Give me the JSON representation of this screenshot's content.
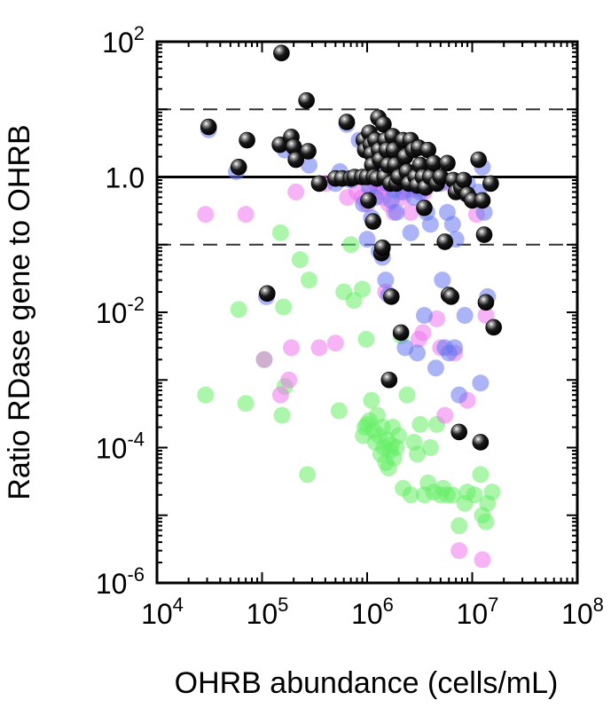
{
  "chart_data": {
    "type": "scatter",
    "xlabel": "OHRB abundance (cells/mL)",
    "ylabel": "Ratio RDase gene to OHRB",
    "x_scale": "log",
    "y_scale": "log",
    "xlim": [
      10000,
      100000000
    ],
    "ylim": [
      1e-06,
      100
    ],
    "x_ticks": [
      {
        "base": "10",
        "exp": "4",
        "value": 10000
      },
      {
        "base": "10",
        "exp": "5",
        "value": 100000
      },
      {
        "base": "10",
        "exp": "6",
        "value": 1000000
      },
      {
        "base": "10",
        "exp": "7",
        "value": 10000000
      },
      {
        "base": "10",
        "exp": "8",
        "value": 100000000
      }
    ],
    "y_ticks": [
      {
        "base": "10",
        "exp": "-6",
        "value": 1e-06
      },
      {
        "base": "10",
        "exp": "-4",
        "value": 0.0001
      },
      {
        "base": "10",
        "exp": "-2",
        "value": 0.01
      },
      {
        "base": "",
        "exp": "",
        "label": "1.0",
        "value": 1
      },
      {
        "base": "10",
        "exp": "2",
        "value": 100
      }
    ],
    "reference_lines": [
      {
        "y": 10,
        "style": "dashed"
      },
      {
        "y": 1,
        "style": "solid"
      },
      {
        "y": 0.1,
        "style": "dashed"
      }
    ],
    "grid": false,
    "legend": "none",
    "series": [
      {
        "color": "#66ee66",
        "marker": "translucent circle",
        "points": [
          [
            29000,
            0.0006
          ],
          [
            60000,
            0.011
          ],
          [
            70000,
            0.00045
          ],
          [
            105000,
            0.002
          ],
          [
            150000,
            0.15
          ],
          [
            155000,
            0.0003
          ],
          [
            160000,
            0.012
          ],
          [
            165000,
            0.0008
          ],
          [
            230000,
            0.06
          ],
          [
            270000,
            4e-05
          ],
          [
            280000,
            0.03
          ],
          [
            540000,
            0.00035
          ],
          [
            600000,
            0.02
          ],
          [
            700000,
            0.1
          ],
          [
            750000,
            0.015
          ],
          [
            900000,
            0.022
          ],
          [
            920000,
            0.00015
          ],
          [
            950000,
            0.0002
          ],
          [
            980000,
            0.004
          ],
          [
            1000000,
            0.00022
          ],
          [
            1050000,
            0.00025
          ],
          [
            1100000,
            0.0005
          ],
          [
            1150000,
            0.00018
          ],
          [
            1200000,
            0.00012
          ],
          [
            1250000,
            0.0003
          ],
          [
            1300000,
            0.00015
          ],
          [
            1350000,
            8e-05
          ],
          [
            1400000,
            0.0002
          ],
          [
            1450000,
            0.0001
          ],
          [
            1500000,
            6e-05
          ],
          [
            1550000,
            0.00013
          ],
          [
            1600000,
            5e-05
          ],
          [
            1650000,
            9e-05
          ],
          [
            1700000,
            0.00011
          ],
          [
            1750000,
            0.0002
          ],
          [
            1800000,
            7e-05
          ],
          [
            1900000,
            0.0001
          ],
          [
            2000000,
            0.00015
          ],
          [
            2100000,
            0.0045
          ],
          [
            2200000,
            2.5e-05
          ],
          [
            2400000,
            0.0006
          ],
          [
            2600000,
            2e-05
          ],
          [
            2800000,
            0.00012
          ],
          [
            3000000,
            8e-05
          ],
          [
            3200000,
            0.00022
          ],
          [
            3500000,
            2e-05
          ],
          [
            3800000,
            3e-05
          ],
          [
            4000000,
            0.0001
          ],
          [
            4300000,
            2.2e-05
          ],
          [
            4600000,
            0.00022
          ],
          [
            5000000,
            2e-05
          ],
          [
            5300000,
            2.5e-05
          ],
          [
            5800000,
            2e-05
          ],
          [
            6500000,
            2e-05
          ],
          [
            7500000,
            7e-06
          ],
          [
            8500000,
            1.5e-05
          ],
          [
            9000000,
            2.2e-05
          ],
          [
            10500000,
            2e-05
          ],
          [
            12000000,
            4e-05
          ],
          [
            12500000,
            1e-05
          ],
          [
            13500000,
            8e-06
          ],
          [
            14000000,
            1.5e-05
          ],
          [
            15500000,
            2.2e-05
          ]
        ]
      },
      {
        "color": "#ee77ee",
        "marker": "translucent circle",
        "points": [
          [
            29000,
            0.28
          ],
          [
            70000,
            0.28
          ],
          [
            105000,
            0.002
          ],
          [
            150000,
            0.0006
          ],
          [
            180000,
            0.001
          ],
          [
            190000,
            0.003
          ],
          [
            210000,
            0.6
          ],
          [
            350000,
            0.003
          ],
          [
            400000,
            0.8
          ],
          [
            500000,
            0.0035
          ],
          [
            650000,
            0.5
          ],
          [
            800000,
            0.6
          ],
          [
            900000,
            0.5
          ],
          [
            1000000,
            0.4
          ],
          [
            1100000,
            0.7
          ],
          [
            1200000,
            0.8
          ],
          [
            1250000,
            0.6
          ],
          [
            1300000,
            0.9
          ],
          [
            1400000,
            0.5
          ],
          [
            1450000,
            0.7
          ],
          [
            1500000,
            0.02
          ],
          [
            1600000,
            0.4
          ],
          [
            1700000,
            0.85
          ],
          [
            1800000,
            0.3
          ],
          [
            2000000,
            0.6
          ],
          [
            2100000,
            0.8
          ],
          [
            2200000,
            0.5
          ],
          [
            2400000,
            0.65
          ],
          [
            2600000,
            0.3
          ],
          [
            2700000,
            0.65
          ],
          [
            3000000,
            0.7
          ],
          [
            3100000,
            0.004
          ],
          [
            3400000,
            0.005
          ],
          [
            3500000,
            0.6
          ],
          [
            3900000,
            0.8
          ],
          [
            4600000,
            0.008
          ],
          [
            5000000,
            0.003
          ],
          [
            5500000,
            0.0003
          ],
          [
            6200000,
            0.8
          ],
          [
            6800000,
            0.0025
          ],
          [
            7000000,
            0.65
          ],
          [
            7500000,
            3e-06
          ],
          [
            9000000,
            0.0005
          ],
          [
            11000000,
            0.28
          ],
          [
            12500000,
            2.2e-06
          ],
          [
            13500000,
            0.009
          ]
        ]
      },
      {
        "color": "#6677ee",
        "marker": "translucent circle",
        "points": [
          [
            31000,
            5
          ],
          [
            57000,
            1.2
          ],
          [
            110000,
            0.017
          ],
          [
            165000,
            2.5
          ],
          [
            210000,
            2
          ],
          [
            280000,
            1.5
          ],
          [
            500000,
            0.8
          ],
          [
            550000,
            1.2
          ],
          [
            640000,
            6
          ],
          [
            700000,
            0.9
          ],
          [
            840000,
            3.5
          ],
          [
            920000,
            0.4
          ],
          [
            1000000,
            0.12
          ],
          [
            1050000,
            0.7
          ],
          [
            1100000,
            0.25
          ],
          [
            1150000,
            1.5
          ],
          [
            1200000,
            0.5
          ],
          [
            1300000,
            0.08
          ],
          [
            1400000,
            0.065
          ],
          [
            1500000,
            0.03
          ],
          [
            1550000,
            0.8
          ],
          [
            1600000,
            0.018
          ],
          [
            1700000,
            0.45
          ],
          [
            1800000,
            0.65
          ],
          [
            1900000,
            0.3
          ],
          [
            2000000,
            2
          ],
          [
            2200000,
            0.6
          ],
          [
            2300000,
            0.003
          ],
          [
            2500000,
            1
          ],
          [
            2600000,
            0.15
          ],
          [
            2800000,
            0.5
          ],
          [
            3000000,
            0.0025
          ],
          [
            3200000,
            0.6
          ],
          [
            3500000,
            0.009
          ],
          [
            3700000,
            0.3
          ],
          [
            4000000,
            0.2
          ],
          [
            4300000,
            1.3
          ],
          [
            4500000,
            0.0015
          ],
          [
            5000000,
            0.8
          ],
          [
            5200000,
            0.03
          ],
          [
            5500000,
            0.003
          ],
          [
            5800000,
            0.3
          ],
          [
            6000000,
            0.0025
          ],
          [
            6500000,
            0.2
          ],
          [
            6800000,
            0.003
          ],
          [
            7000000,
            0.12
          ],
          [
            7500000,
            0.0006
          ],
          [
            8000000,
            0.6
          ],
          [
            8500000,
            0.009
          ],
          [
            9000000,
            0.8
          ],
          [
            11500000,
            0.6
          ],
          [
            12000000,
            0.0009
          ],
          [
            12500000,
            1.4
          ],
          [
            13000000,
            0.3
          ],
          [
            14000000,
            0.017
          ]
        ]
      },
      {
        "color": "#000000",
        "marker": "shaded sphere",
        "points": [
          [
            31000,
            5.5
          ],
          [
            60000,
            1.4
          ],
          [
            72000,
            3.5
          ],
          [
            112000,
            0.019
          ],
          [
            148000,
            3.0
          ],
          [
            153000,
            68
          ],
          [
            190000,
            3.9
          ],
          [
            200000,
            2.8
          ],
          [
            210000,
            1.8
          ],
          [
            265000,
            13.5
          ],
          [
            275000,
            2.4
          ],
          [
            350000,
            0.8
          ],
          [
            500000,
            0.95
          ],
          [
            580000,
            0.95
          ],
          [
            640000,
            6.5
          ],
          [
            700000,
            0.95
          ],
          [
            760000,
            1.0
          ],
          [
            900000,
            1.0
          ],
          [
            930000,
            3.5
          ],
          [
            960000,
            2.5
          ],
          [
            1000000,
            1.0
          ],
          [
            1030000,
            0.45
          ],
          [
            1050000,
            4.5
          ],
          [
            1080000,
            3.0
          ],
          [
            1100000,
            2.2
          ],
          [
            1120000,
            1.5
          ],
          [
            1140000,
            0.22
          ],
          [
            1160000,
            1.0
          ],
          [
            1200000,
            3.5
          ],
          [
            1240000,
            0.95
          ],
          [
            1280000,
            7.5
          ],
          [
            1300000,
            2.5
          ],
          [
            1330000,
            1.8
          ],
          [
            1370000,
            0.075
          ],
          [
            1400000,
            0.09
          ],
          [
            1430000,
            6.0
          ],
          [
            1470000,
            1.0
          ],
          [
            1500000,
            3.5
          ],
          [
            1540000,
            2.5
          ],
          [
            1580000,
            1.5
          ],
          [
            1620000,
            0.001
          ],
          [
            1670000,
            0.8
          ],
          [
            1700000,
            0.017
          ],
          [
            1750000,
            4.0
          ],
          [
            1800000,
            2.5
          ],
          [
            1850000,
            1.5
          ],
          [
            1900000,
            0.8
          ],
          [
            2000000,
            1.0
          ],
          [
            2100000,
            0.005
          ],
          [
            2200000,
            3.5
          ],
          [
            2300000,
            2.0
          ],
          [
            2400000,
            1.2
          ],
          [
            2500000,
            0.8
          ],
          [
            2600000,
            3.5
          ],
          [
            2750000,
            2.5
          ],
          [
            2900000,
            1.0
          ],
          [
            3000000,
            0.75
          ],
          [
            3100000,
            2.7
          ],
          [
            3200000,
            1.5
          ],
          [
            3400000,
            1.0
          ],
          [
            3500000,
            0.35
          ],
          [
            3600000,
            0.7
          ],
          [
            3800000,
            2.5
          ],
          [
            4000000,
            1.0
          ],
          [
            4300000,
            1.6
          ],
          [
            4600000,
            0.8
          ],
          [
            5000000,
            1.0
          ],
          [
            5500000,
            0.11
          ],
          [
            5800000,
            1.6
          ],
          [
            6000000,
            0.018
          ],
          [
            6300000,
            0.017
          ],
          [
            6600000,
            0.9
          ],
          [
            7000000,
            0.6
          ],
          [
            7500000,
            0.00017
          ],
          [
            7900000,
            0.7
          ],
          [
            8300000,
            0.9
          ],
          [
            9000000,
            0.55
          ],
          [
            10000000,
            0.45
          ],
          [
            11500000,
            1.8
          ],
          [
            12000000,
            0.00012
          ],
          [
            12500000,
            0.45
          ],
          [
            13000000,
            0.14
          ],
          [
            13500000,
            0.014
          ],
          [
            15000000,
            0.8
          ],
          [
            16000000,
            0.006
          ]
        ]
      }
    ]
  }
}
